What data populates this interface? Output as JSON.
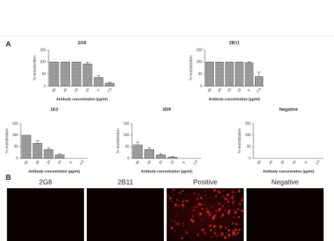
{
  "chart_data": [
    {
      "type": "bar",
      "title": "2G8",
      "categories": [
        "80",
        "40",
        "20",
        "10",
        "5",
        "2.5"
      ],
      "values": [
        100,
        100,
        100,
        92,
        36,
        12
      ],
      "errors": [
        null,
        null,
        null,
        6,
        8,
        5
      ],
      "color": "#9a9a9a",
      "ylim": [
        0,
        150
      ],
      "yticks": [
        0,
        50,
        100,
        150
      ],
      "xlabel": "Antibody concentration (µg/ml)",
      "ylabel": "% neutralization"
    },
    {
      "type": "bar",
      "title": "2B11",
      "categories": [
        "80",
        "40",
        "20",
        "10",
        "5",
        "2.5"
      ],
      "values": [
        100,
        100,
        100,
        100,
        97,
        40
      ],
      "errors": [
        null,
        null,
        null,
        null,
        4,
        18
      ],
      "color": "#9a9a9a",
      "ylim": [
        0,
        150
      ],
      "yticks": [
        0,
        50,
        100,
        150
      ],
      "xlabel": "Antibody concentration (µg/ml)",
      "ylabel": "% neutralization"
    },
    {
      "type": "bar",
      "title": "1E3",
      "categories": [
        "80",
        "40",
        "20",
        "10",
        "5",
        "2.5"
      ],
      "values": [
        100,
        65,
        38,
        15,
        0,
        0
      ],
      "errors": [
        null,
        12,
        7,
        4,
        null,
        null
      ],
      "color": "#9a9a9a",
      "ylim": [
        0,
        150
      ],
      "yticks": [
        0,
        50,
        100,
        150
      ],
      "xlabel": "Antibody concentration (µg/ml)",
      "ylabel": "% neutralization"
    },
    {
      "type": "bar",
      "title": "3D9",
      "categories": [
        "80",
        "40",
        "20",
        "10",
        "5",
        "2.5"
      ],
      "values": [
        58,
        38,
        15,
        5,
        0,
        0
      ],
      "errors": [
        12,
        8,
        5,
        3,
        null,
        null
      ],
      "color": "#9a9a9a",
      "ylim": [
        0,
        150
      ],
      "yticks": [
        0,
        50,
        100,
        150
      ],
      "xlabel": "Antibody concentration (µg/ml)",
      "ylabel": "% neutralization"
    },
    {
      "type": "bar",
      "title": "Negative",
      "categories": [
        "80",
        "40",
        "20",
        "10",
        "5",
        "2.5"
      ],
      "values": [
        0,
        0,
        0,
        0,
        0,
        0
      ],
      "errors": [
        null,
        null,
        null,
        null,
        null,
        null
      ],
      "color": "#9a9a9a",
      "ylim": [
        0,
        150
      ],
      "yticks": [
        0,
        50,
        100,
        150
      ],
      "xlabel": "Antibody concentration (µg/ml)",
      "ylabel": "% neutralization"
    }
  ],
  "panel_labels": [
    "A",
    "B"
  ],
  "images": [
    "2G8",
    "2B11",
    "Positive",
    "Negative"
  ]
}
